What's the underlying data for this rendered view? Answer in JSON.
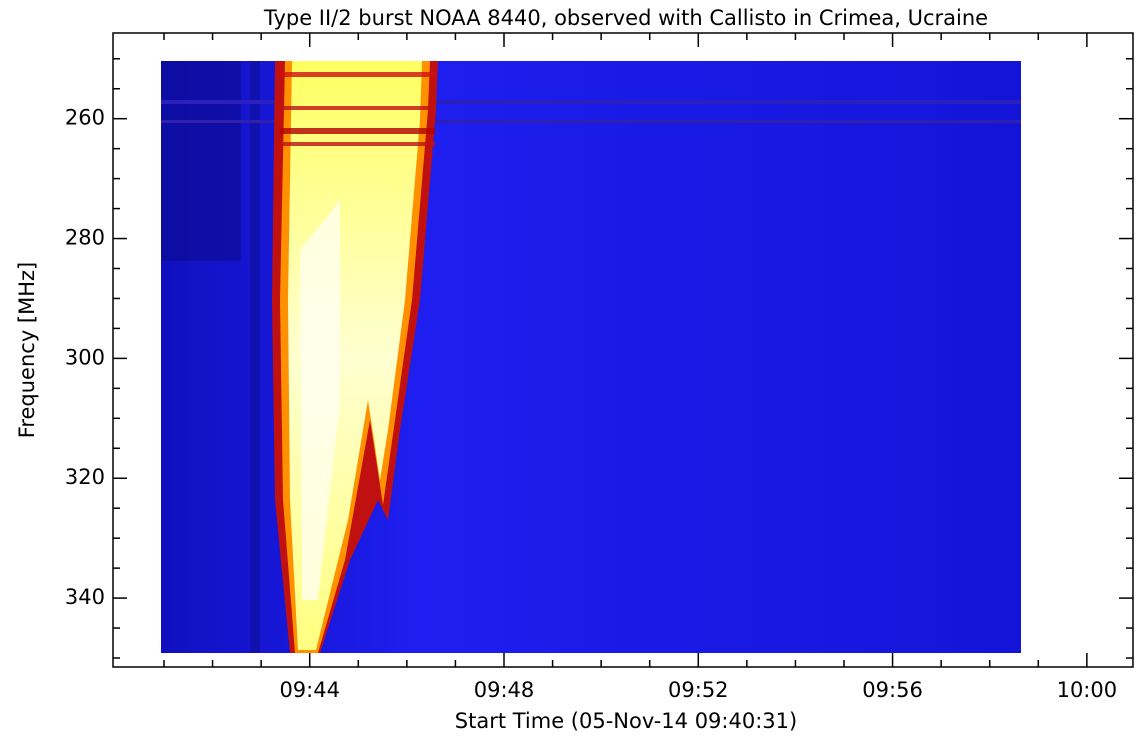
{
  "chart_data": {
    "type": "spectrogram",
    "title": "Type II/2 burst NOAA 8440, observed with Callisto in Crimea, Ucraine",
    "xlabel": "Start Time (05-Nov-14 09:40:31)",
    "ylabel": "Frequency [MHz]",
    "xlim": [
      39.95,
      60.95
    ],
    "xticks": [
      {
        "value": 44,
        "label": "09:44"
      },
      {
        "value": 48,
        "label": "09:48"
      },
      {
        "value": 52,
        "label": "09:52"
      },
      {
        "value": 56,
        "label": "09:56"
      },
      {
        "value": 60,
        "label": "10:00"
      }
    ],
    "xminorticks": [
      41,
      42,
      43,
      45,
      46,
      47,
      49,
      50,
      51,
      53,
      54,
      55,
      57,
      58,
      59
    ],
    "ylim": [
      245.7,
      351.5
    ],
    "yinverted": true,
    "yticks": [
      260,
      280,
      300,
      320,
      340
    ],
    "yminorticks": [
      250,
      255,
      265,
      270,
      275,
      285,
      290,
      295,
      305,
      310,
      315,
      325,
      330,
      335,
      345,
      350
    ]
  }
}
